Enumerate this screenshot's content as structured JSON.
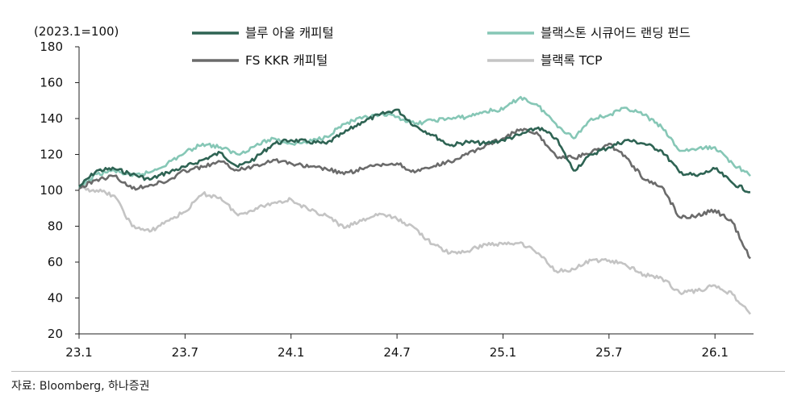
{
  "chart_data": {
    "type": "line",
    "unit_label": "(2023.1=100)",
    "ylim": [
      20,
      180
    ],
    "yticks": [
      20,
      40,
      60,
      80,
      100,
      120,
      140,
      160,
      180
    ],
    "x_tick_labels": [
      "23.1",
      "23.7",
      "24.1",
      "24.7",
      "25.1",
      "25.7",
      "26.1"
    ],
    "x_ticks": [
      "2023-01",
      "2023-07",
      "2024-01",
      "2024-07",
      "2025-01",
      "2025-07",
      "2026-01"
    ],
    "x_range": [
      "2023-01",
      "2026-03"
    ],
    "grid": false,
    "legend_position": "top",
    "series": [
      {
        "name": "블루 아울 캐피털",
        "color": "#2e6353",
        "points": [
          [
            "2023-01",
            102
          ],
          [
            "2023-02",
            111
          ],
          [
            "2023-03",
            112
          ],
          [
            "2023-04",
            109
          ],
          [
            "2023-05",
            106
          ],
          [
            "2023-06",
            110
          ],
          [
            "2023-07",
            113
          ],
          [
            "2023-08",
            117
          ],
          [
            "2023-09",
            121
          ],
          [
            "2023-10",
            113
          ],
          [
            "2023-11",
            118
          ],
          [
            "2023-12",
            126
          ],
          [
            "2024-01",
            128
          ],
          [
            "2024-02",
            127
          ],
          [
            "2024-03",
            126
          ],
          [
            "2024-04",
            132
          ],
          [
            "2024-05",
            138
          ],
          [
            "2024-06",
            142
          ],
          [
            "2024-07",
            145
          ],
          [
            "2024-08",
            136
          ],
          [
            "2024-09",
            131
          ],
          [
            "2024-10",
            125
          ],
          [
            "2024-11",
            127
          ],
          [
            "2024-12",
            126
          ],
          [
            "2025-01",
            128
          ],
          [
            "2025-02",
            131
          ],
          [
            "2025-03",
            135
          ],
          [
            "2025-04",
            129
          ],
          [
            "2025-05",
            111
          ],
          [
            "2025-06",
            120
          ],
          [
            "2025-07",
            124
          ],
          [
            "2025-08",
            128
          ],
          [
            "2025-09",
            126
          ],
          [
            "2025-10",
            122
          ],
          [
            "2025-11",
            110
          ],
          [
            "2025-12",
            108
          ],
          [
            "2026-01",
            112
          ],
          [
            "2026-02",
            104
          ],
          [
            "2026-03",
            99
          ]
        ]
      },
      {
        "name": "블랙스톤 시큐어드 랜딩 펀드",
        "color": "#86c7b6",
        "points": [
          [
            "2023-01",
            101
          ],
          [
            "2023-02",
            109
          ],
          [
            "2023-03",
            111
          ],
          [
            "2023-04",
            108
          ],
          [
            "2023-05",
            110
          ],
          [
            "2023-06",
            115
          ],
          [
            "2023-07",
            121
          ],
          [
            "2023-08",
            126
          ],
          [
            "2023-09",
            124
          ],
          [
            "2023-10",
            120
          ],
          [
            "2023-11",
            125
          ],
          [
            "2023-12",
            129
          ],
          [
            "2024-01",
            126
          ],
          [
            "2024-02",
            127
          ],
          [
            "2024-03",
            130
          ],
          [
            "2024-04",
            137
          ],
          [
            "2024-05",
            140
          ],
          [
            "2024-06",
            142
          ],
          [
            "2024-07",
            141
          ],
          [
            "2024-08",
            137
          ],
          [
            "2024-09",
            139
          ],
          [
            "2024-10",
            140
          ],
          [
            "2024-11",
            141
          ],
          [
            "2024-12",
            144
          ],
          [
            "2025-01",
            145
          ],
          [
            "2025-02",
            152
          ],
          [
            "2025-03",
            147
          ],
          [
            "2025-04",
            137
          ],
          [
            "2025-05",
            129
          ],
          [
            "2025-06",
            140
          ],
          [
            "2025-07",
            142
          ],
          [
            "2025-08",
            146
          ],
          [
            "2025-09",
            142
          ],
          [
            "2025-10",
            135
          ],
          [
            "2025-11",
            122
          ],
          [
            "2025-12",
            123
          ],
          [
            "2026-01",
            124
          ],
          [
            "2026-02",
            115
          ],
          [
            "2026-03",
            108
          ]
        ]
      },
      {
        "name": "FS KKR 캐피털",
        "color": "#6b6b6b",
        "points": [
          [
            "2023-01",
            101
          ],
          [
            "2023-02",
            106
          ],
          [
            "2023-03",
            108
          ],
          [
            "2023-04",
            101
          ],
          [
            "2023-05",
            103
          ],
          [
            "2023-06",
            105
          ],
          [
            "2023-07",
            111
          ],
          [
            "2023-08",
            113
          ],
          [
            "2023-09",
            116
          ],
          [
            "2023-10",
            111
          ],
          [
            "2023-11",
            114
          ],
          [
            "2023-12",
            117
          ],
          [
            "2024-01",
            115
          ],
          [
            "2024-02",
            113
          ],
          [
            "2024-03",
            112
          ],
          [
            "2024-04",
            109
          ],
          [
            "2024-05",
            112
          ],
          [
            "2024-06",
            114
          ],
          [
            "2024-07",
            115
          ],
          [
            "2024-08",
            110
          ],
          [
            "2024-09",
            113
          ],
          [
            "2024-10",
            116
          ],
          [
            "2024-11",
            120
          ],
          [
            "2024-12",
            125
          ],
          [
            "2025-01",
            129
          ],
          [
            "2025-02",
            134
          ],
          [
            "2025-03",
            131
          ],
          [
            "2025-04",
            119
          ],
          [
            "2025-05",
            118
          ],
          [
            "2025-06",
            121
          ],
          [
            "2025-07",
            126
          ],
          [
            "2025-08",
            118
          ],
          [
            "2025-09",
            106
          ],
          [
            "2025-10",
            102
          ],
          [
            "2025-11",
            85
          ],
          [
            "2025-12",
            86
          ],
          [
            "2026-01",
            89
          ],
          [
            "2026-02",
            82
          ],
          [
            "2026-03",
            62
          ]
        ]
      },
      {
        "name": "블랙록 TCP",
        "color": "#c4c4c4",
        "points": [
          [
            "2023-01",
            101
          ],
          [
            "2023-02",
            100
          ],
          [
            "2023-03",
            97
          ],
          [
            "2023-04",
            80
          ],
          [
            "2023-05",
            77
          ],
          [
            "2023-06",
            83
          ],
          [
            "2023-07",
            88
          ],
          [
            "2023-08",
            98
          ],
          [
            "2023-09",
            96
          ],
          [
            "2023-10",
            86
          ],
          [
            "2023-11",
            90
          ],
          [
            "2023-12",
            93
          ],
          [
            "2024-01",
            95
          ],
          [
            "2024-02",
            89
          ],
          [
            "2024-03",
            86
          ],
          [
            "2024-04",
            79
          ],
          [
            "2024-05",
            83
          ],
          [
            "2024-06",
            87
          ],
          [
            "2024-07",
            84
          ],
          [
            "2024-08",
            79
          ],
          [
            "2024-09",
            70
          ],
          [
            "2024-10",
            65
          ],
          [
            "2024-11",
            66
          ],
          [
            "2024-12",
            70
          ],
          [
            "2025-01",
            70
          ],
          [
            "2025-02",
            71
          ],
          [
            "2025-03",
            65
          ],
          [
            "2025-04",
            55
          ],
          [
            "2025-05",
            56
          ],
          [
            "2025-06",
            61
          ],
          [
            "2025-07",
            61
          ],
          [
            "2025-08",
            58
          ],
          [
            "2025-09",
            53
          ],
          [
            "2025-10",
            51
          ],
          [
            "2025-11",
            43
          ],
          [
            "2025-12",
            44
          ],
          [
            "2026-01",
            47
          ],
          [
            "2026-02",
            42
          ],
          [
            "2026-03",
            31
          ]
        ]
      }
    ]
  },
  "source": "자료: Bloomberg, 하나증권"
}
